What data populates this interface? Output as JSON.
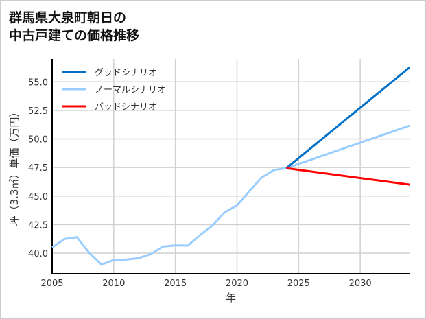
{
  "chart_data": {
    "type": "line",
    "title": [
      "群馬県大泉町朝日の",
      "中古戸建ての価格推移"
    ],
    "xlabel": "年",
    "ylabel": "坪（3.3㎡）単価（万円）",
    "xlim": [
      2005,
      2034
    ],
    "ylim": [
      38.2,
      57.0
    ],
    "xticks": [
      2005,
      2010,
      2015,
      2020,
      2025,
      2030
    ],
    "yticks": [
      "40.0",
      "42.5",
      "45.0",
      "47.5",
      "50.0",
      "52.5",
      "55.0"
    ],
    "grid": true,
    "legend_position": "top-left",
    "series": [
      {
        "name": "グッドシナリオ",
        "color": "#0070c8",
        "x": [
          2024,
          2034
        ],
        "y": [
          47.44,
          56.26
        ]
      },
      {
        "name": "ノーマルシナリオ",
        "color": "#99ccff",
        "x": [
          2005,
          2006,
          2007,
          2008,
          2009,
          2010,
          2011,
          2012,
          2013,
          2014,
          2015,
          2016,
          2017,
          2018,
          2019,
          2020,
          2021,
          2022,
          2023,
          2024,
          2034
        ],
        "y": [
          40.5,
          41.24,
          41.4,
          40.04,
          39.0,
          39.4,
          39.44,
          39.56,
          39.92,
          40.58,
          40.68,
          40.66,
          41.58,
          42.42,
          43.58,
          44.18,
          45.42,
          46.62,
          47.28,
          47.44,
          51.16
        ]
      },
      {
        "name": "バッドシナリオ",
        "color": "#ff0000",
        "x": [
          2024,
          2034
        ],
        "y": [
          47.44,
          46.0
        ]
      }
    ]
  }
}
